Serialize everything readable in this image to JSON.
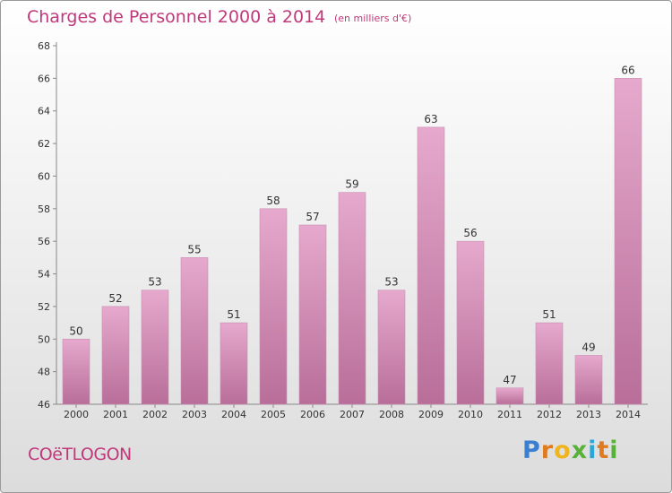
{
  "header": {
    "title": "Charges de Personnel 2000 à 2014",
    "unit": "(en milliers d'€)"
  },
  "footer": {
    "place": "COëTLOGON",
    "logo": {
      "letters": [
        "P",
        "r",
        "o",
        "x",
        "i",
        "t",
        "i"
      ],
      "colors": [
        "#3a7fd0",
        "#e07a1f",
        "#f0b51e",
        "#58b23a",
        "#2ca6d6",
        "#e07a1f",
        "#58b23a"
      ]
    }
  },
  "colors": {
    "bar_light": "#e6a9cd",
    "bar_dark": "#b86e99",
    "text": "#c0397a"
  },
  "chart_data": {
    "type": "bar",
    "title": "Charges de Personnel 2000 à 2014",
    "subtitle": "(en milliers d'€)",
    "categories": [
      "2000",
      "2001",
      "2002",
      "2003",
      "2004",
      "2005",
      "2006",
      "2007",
      "2008",
      "2009",
      "2010",
      "2011",
      "2012",
      "2013",
      "2014"
    ],
    "values": [
      50,
      52,
      53,
      55,
      51,
      58,
      57,
      59,
      53,
      63,
      56,
      47,
      51,
      49,
      66
    ],
    "ylim": [
      46,
      68
    ],
    "yticks": [
      46,
      48,
      50,
      52,
      54,
      56,
      58,
      60,
      62,
      64,
      66,
      68
    ],
    "grid": false
  }
}
